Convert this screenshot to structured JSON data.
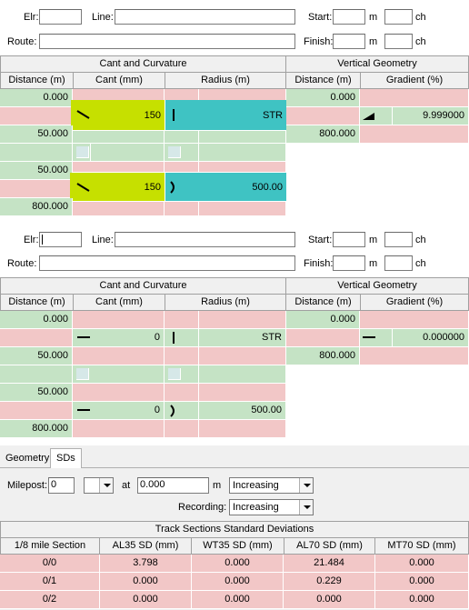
{
  "panel1": {
    "elr_label": "Elr:",
    "line_label": "Line:",
    "start_label": "Start:",
    "m_label": "m",
    "ch_label": "ch",
    "route_label": "Route:",
    "finish_label": "Finish:",
    "cant_curv_header": "Cant and Curvature",
    "vert_geom_header": "Vertical Geometry",
    "col_distance": "Distance (m)",
    "col_cant": "Cant (mm)",
    "col_radius": "Radius (m)",
    "col_gradient": "Gradient (%)",
    "rows": {
      "d1": "0.000",
      "cant1": "150",
      "rad1": "STR",
      "d2": "50.000",
      "d3": "50.000",
      "cant2": "150",
      "rad2": "500.00",
      "d4": "800.000"
    },
    "vg": {
      "d1": "0.000",
      "grad1": "9.999000",
      "d2": "800.000"
    }
  },
  "panel2": {
    "elr_label": "Elr:",
    "line_label": "Line:",
    "start_label": "Start:",
    "m_label": "m",
    "ch_label": "ch",
    "route_label": "Route:",
    "finish_label": "Finish:",
    "cant_curv_header": "Cant and Curvature",
    "vert_geom_header": "Vertical Geometry",
    "col_distance": "Distance (m)",
    "col_cant": "Cant (mm)",
    "col_radius": "Radius (m)",
    "col_gradient": "Gradient (%)",
    "rows": {
      "d1": "0.000",
      "cant1": "0",
      "rad1": "STR",
      "d2": "50.000",
      "d3": "50.000",
      "cant2": "0",
      "rad2": "500.00",
      "d4": "800.000"
    },
    "vg": {
      "d1": "0.000",
      "grad1": "0.000000",
      "d2": "800.000"
    }
  },
  "bottom": {
    "tabs": [
      "Geometry",
      "SDs"
    ],
    "milepost_label": "Milepost:",
    "milepost_value": "0",
    "at_label": "at",
    "at_value": "0.000",
    "m_label": "m",
    "direction_value": "Increasing",
    "recording_label": "Recording:",
    "recording_value": "Increasing",
    "table_title": "Track Sections Standard Deviations",
    "columns": [
      "1/8 mile Section",
      "AL35 SD (mm)",
      "WT35 SD (mm)",
      "AL70 SD (mm)",
      "MT70 SD (mm)"
    ],
    "rows": [
      [
        "0/0",
        "3.798",
        "0.000",
        "21.484",
        "0.000"
      ],
      [
        "0/1",
        "0.000",
        "0.000",
        "0.229",
        "0.000"
      ],
      [
        "0/2",
        "0.000",
        "0.000",
        "0.000",
        "0.000"
      ]
    ]
  }
}
